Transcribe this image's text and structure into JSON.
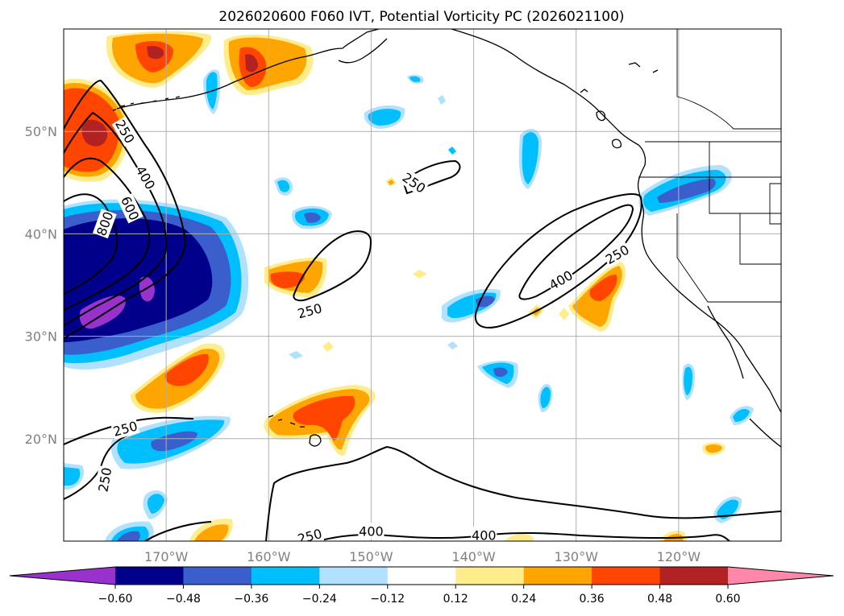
{
  "title": "2026020600 F060 IVT, Potential Vorticity PC (2026021100)",
  "map": {
    "lat_range": [
      10,
      60
    ],
    "lon_range": [
      -180,
      -110
    ],
    "lat_ticks": [
      {
        "value": 50,
        "label": "50°N"
      },
      {
        "value": 40,
        "label": "40°N"
      },
      {
        "value": 30,
        "label": "30°N"
      },
      {
        "value": 20,
        "label": "20°N"
      }
    ],
    "lon_ticks": [
      {
        "value": -170,
        "label": "170°W"
      },
      {
        "value": -160,
        "label": "160°W"
      },
      {
        "value": -150,
        "label": "150°W"
      },
      {
        "value": -140,
        "label": "140°W"
      },
      {
        "value": -130,
        "label": "130°W"
      },
      {
        "value": -120,
        "label": "120°W"
      }
    ],
    "contour_labels": [
      {
        "text": "250",
        "lon": -174.0,
        "lat": 50.0,
        "rot": 60
      },
      {
        "text": "400",
        "lon": -172.0,
        "lat": 45.5,
        "rot": 60
      },
      {
        "text": "600",
        "lon": -173.5,
        "lat": 42.5,
        "rot": 65
      },
      {
        "text": "800",
        "lon": -176.0,
        "lat": 41.0,
        "rot": -70
      },
      {
        "text": "250",
        "lon": -156.0,
        "lat": 32.5,
        "rot": -15
      },
      {
        "text": "250",
        "lon": -145.8,
        "lat": 45.0,
        "rot": 35
      },
      {
        "text": "400",
        "lon": -131.5,
        "lat": 35.5,
        "rot": -30
      },
      {
        "text": "250",
        "lon": -126.0,
        "lat": 38.0,
        "rot": -30
      },
      {
        "text": "250",
        "lon": -174.0,
        "lat": 21.0,
        "rot": -15
      },
      {
        "text": "250",
        "lon": -176.0,
        "lat": 16.0,
        "rot": -80
      },
      {
        "text": "250",
        "lon": -156.0,
        "lat": 10.5,
        "rot": -15
      },
      {
        "text": "400",
        "lon": -150.0,
        "lat": 11.0,
        "rot": 0
      },
      {
        "text": "400",
        "lon": -139.0,
        "lat": 10.6,
        "rot": 0
      }
    ]
  },
  "colorbar": {
    "ticks": [
      "−0.60",
      "−0.48",
      "−0.36",
      "−0.24",
      "−0.12",
      "0.12",
      "0.24",
      "0.36",
      "0.48",
      "0.60"
    ],
    "colors": [
      "#9932cc",
      "#00008b",
      "#3a5fcd",
      "#00bfff",
      "#b0e2ff",
      "#ffffff",
      "#ffec8b",
      "#ffa500",
      "#ff4500",
      "#b22222",
      "#ff88aa"
    ]
  }
}
